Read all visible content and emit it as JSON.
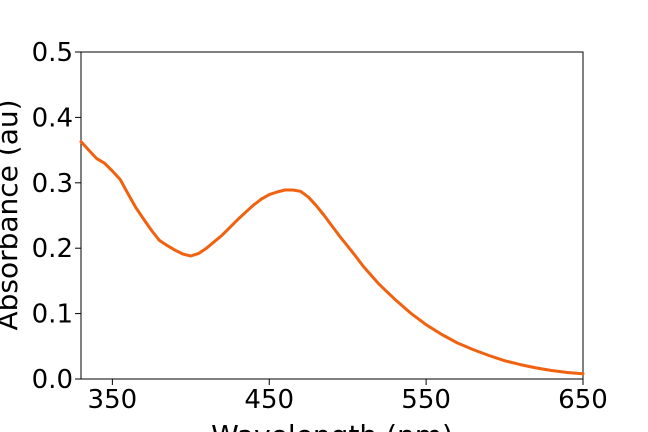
{
  "chart_data": {
    "type": "line",
    "title": "",
    "xlabel": "Wavelength (nm)",
    "ylabel": "Absorbance (au)",
    "xlim": [
      330,
      650
    ],
    "ylim": [
      0.0,
      0.5
    ],
    "x_ticks": [
      350,
      450,
      550,
      650
    ],
    "y_ticks": [
      0.0,
      0.1,
      0.2,
      0.3,
      0.4,
      0.5
    ],
    "x_tick_labels": [
      "350",
      "450",
      "550",
      "650"
    ],
    "y_tick_labels": [
      "0.0",
      "0.1",
      "0.2",
      "0.3",
      "0.4",
      "0.5"
    ],
    "grid": false,
    "legend": false,
    "line_color": "#f0620f",
    "series": [
      {
        "x": [
          330,
          335,
          340,
          345,
          350,
          355,
          360,
          365,
          370,
          375,
          380,
          385,
          390,
          395,
          400,
          405,
          410,
          415,
          420,
          425,
          430,
          435,
          440,
          445,
          450,
          455,
          460,
          465,
          470,
          475,
          480,
          485,
          490,
          495,
          500,
          505,
          510,
          520,
          530,
          540,
          550,
          560,
          570,
          580,
          590,
          600,
          610,
          620,
          630,
          640,
          650
        ],
        "y": [
          0.363,
          0.35,
          0.337,
          0.33,
          0.318,
          0.305,
          0.283,
          0.262,
          0.244,
          0.227,
          0.212,
          0.204,
          0.197,
          0.191,
          0.188,
          0.192,
          0.2,
          0.21,
          0.22,
          0.232,
          0.244,
          0.255,
          0.266,
          0.275,
          0.282,
          0.286,
          0.289,
          0.289,
          0.287,
          0.278,
          0.265,
          0.25,
          0.234,
          0.218,
          0.203,
          0.188,
          0.172,
          0.145,
          0.122,
          0.101,
          0.083,
          0.068,
          0.055,
          0.045,
          0.036,
          0.028,
          0.022,
          0.017,
          0.013,
          0.01,
          0.008
        ]
      }
    ]
  }
}
